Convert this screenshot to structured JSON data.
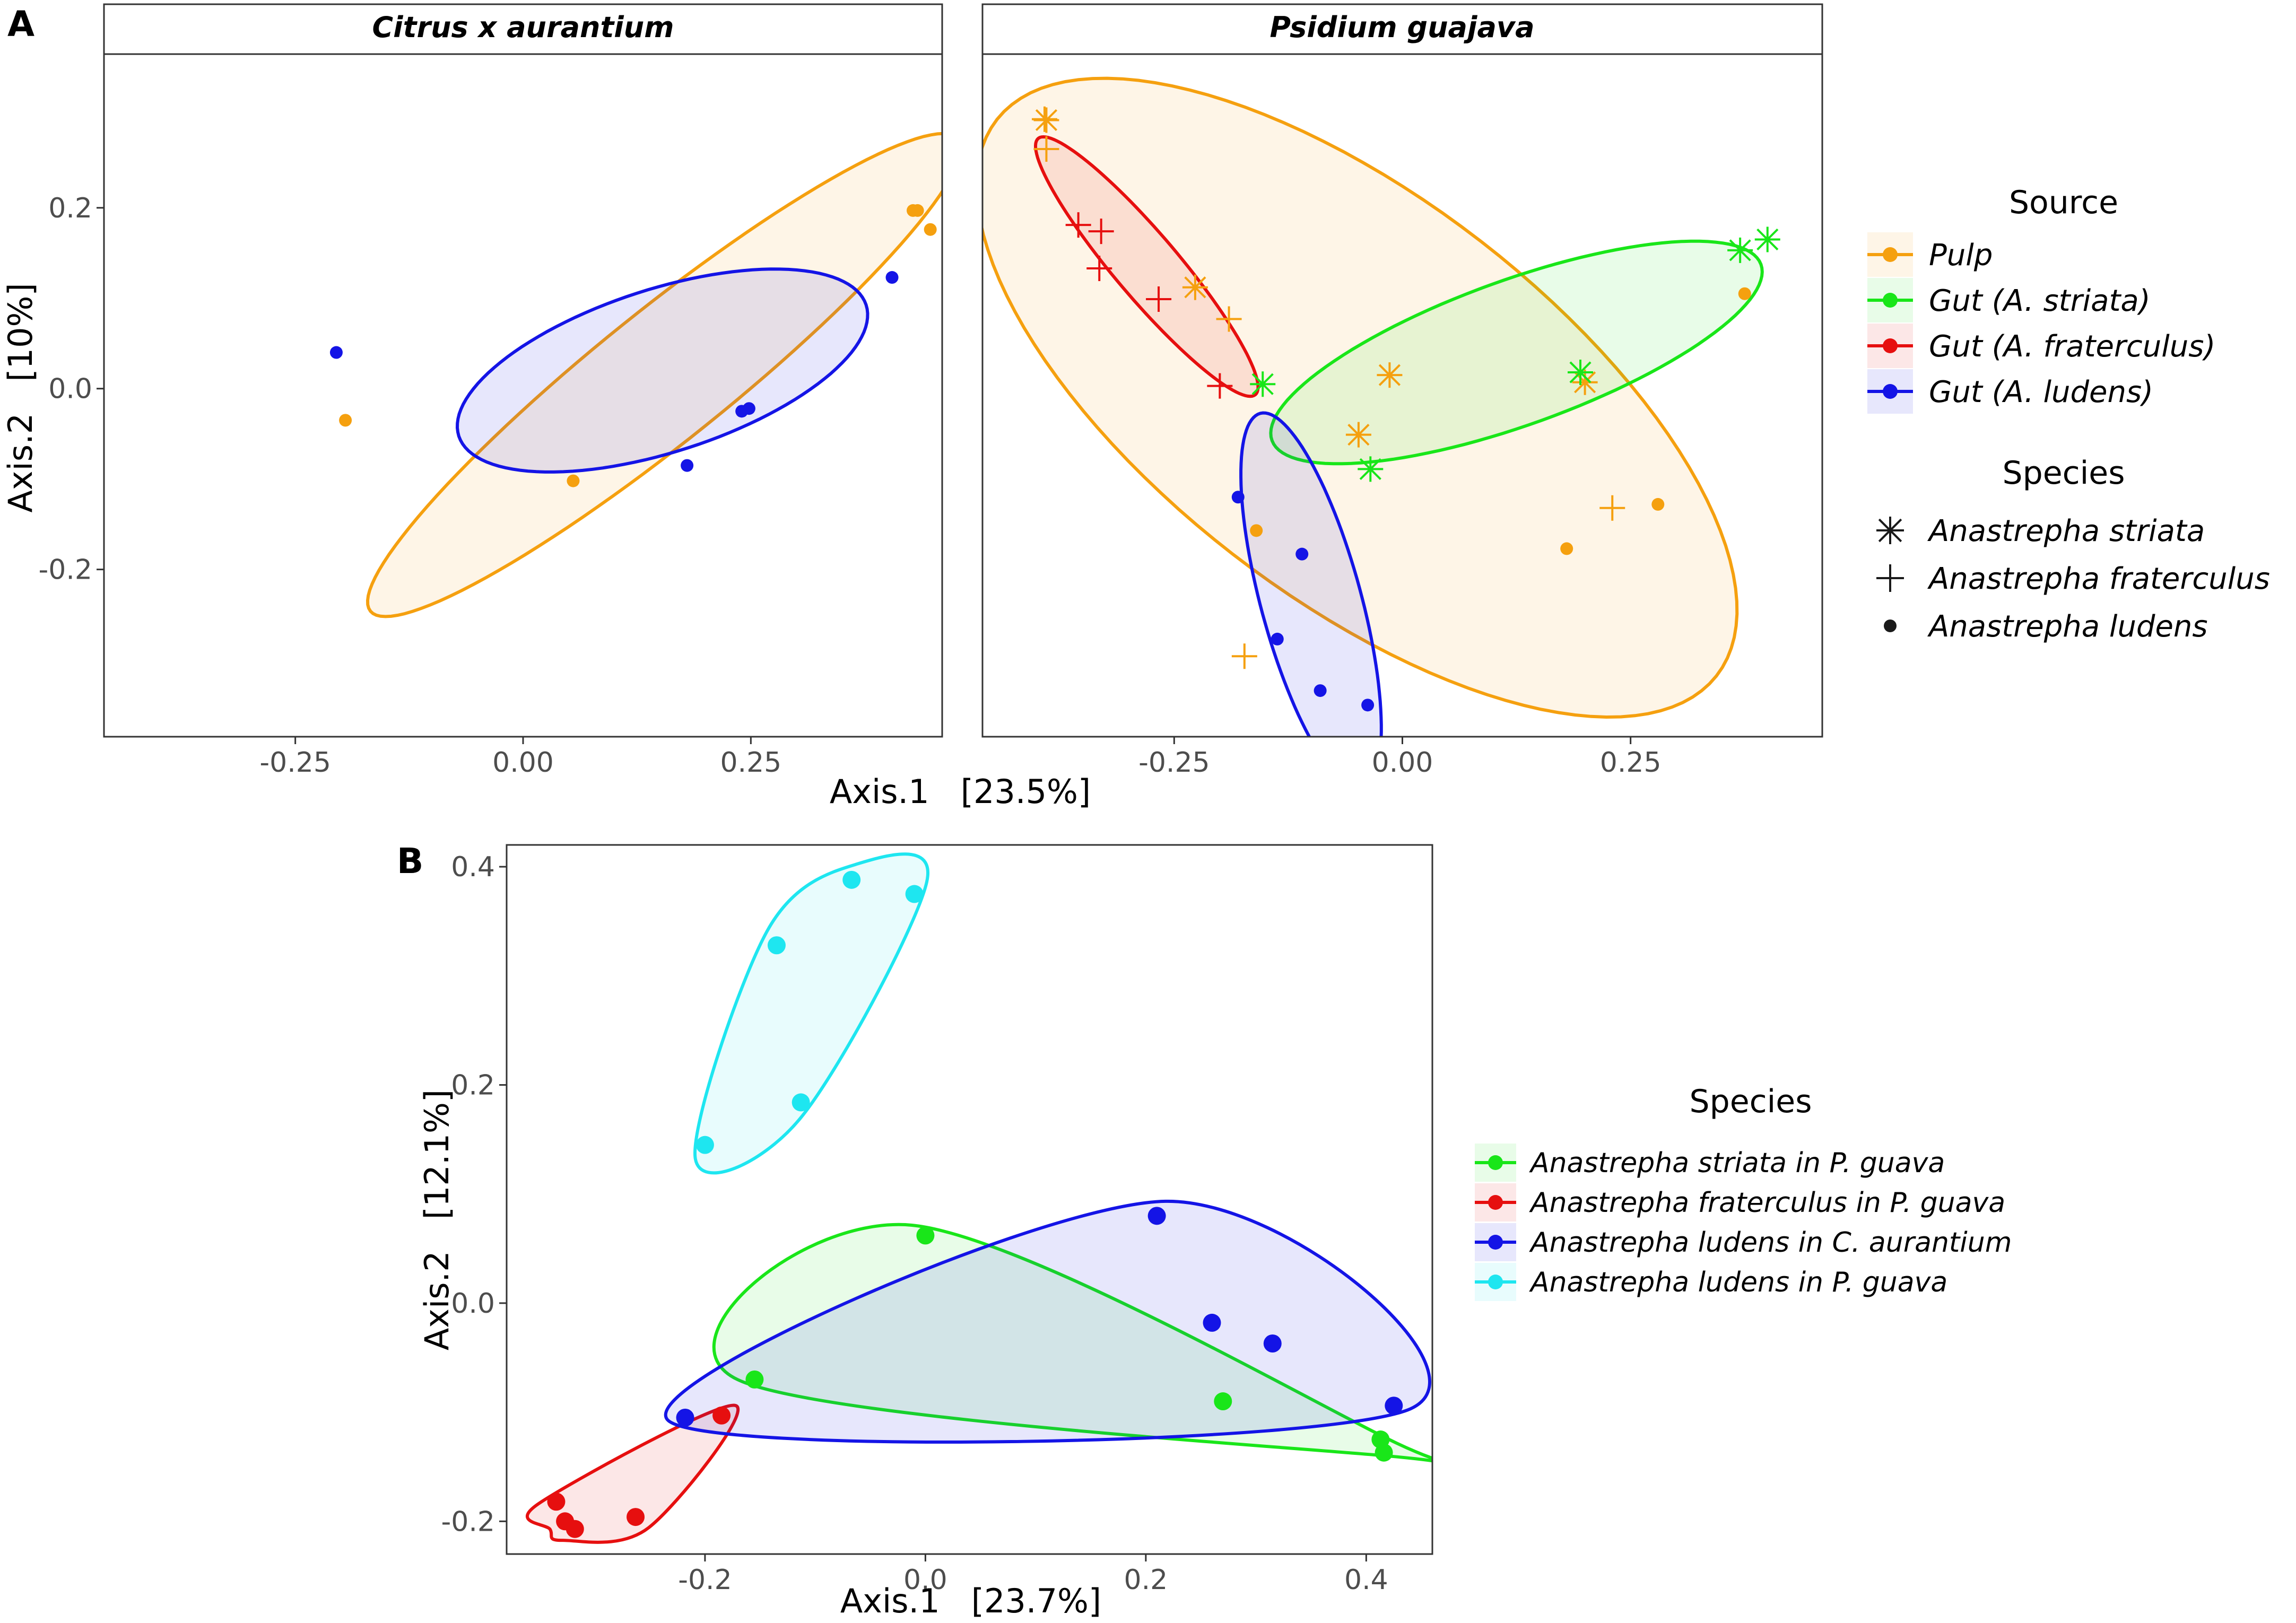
{
  "figure": {
    "panel_a_label": "A",
    "panel_b_label": "B"
  },
  "panel_a": {
    "axis_x_label": "Axis.1   [23.5%]",
    "axis_y_label": "Axis.2   [10%]",
    "facet_1_title": "Citrus x aurantium",
    "facet_2_title": "Psidium guajava",
    "legend_source_title": "Source",
    "legend_species_title": "Species",
    "legend_source": [
      {
        "label": "Pulp",
        "color": "#f5a00f"
      },
      {
        "label": "Gut (A. striata)",
        "color": "#19e619"
      },
      {
        "label": "Gut (A. fraterculus)",
        "color": "#e60f0f"
      },
      {
        "label": "Gut (A. ludens)",
        "color": "#1414e6"
      }
    ],
    "legend_species": [
      {
        "label": "Anastrepha  striata",
        "shape": "asterisk"
      },
      {
        "label": "Anastrepha  fraterculus",
        "shape": "plus"
      },
      {
        "label": "Anastrepha  ludens",
        "shape": "dot"
      }
    ]
  },
  "panel_b": {
    "axis_x_label": "Axis.1   [23.7%]",
    "axis_y_label": "Axis.2   [12.1%]",
    "legend_title": "Species",
    "legend": [
      {
        "label": "Anastrepha striata in P. guava",
        "color": "#19e619"
      },
      {
        "label": "Anastrepha fraterculus in P. guava",
        "color": "#e60f0f"
      },
      {
        "label": "Anastrepha ludens in C. aurantium",
        "color": "#1414e6"
      },
      {
        "label": "Anastrepha ludens in P. guava",
        "color": "#1ee6f0"
      }
    ]
  },
  "chart_data": [
    {
      "type": "scatter",
      "title": "Citrus x aurantium",
      "xlabel": "Axis.1   [23.5%]",
      "ylabel": "Axis.2   [10%]",
      "xlim": [
        -0.46,
        0.46
      ],
      "ylim": [
        -0.385,
        0.37
      ],
      "xticks": [
        -0.25,
        0.0,
        0.25
      ],
      "xtick_labels": [
        "-0.25",
        "0.00",
        "0.25"
      ],
      "yticks": [
        0.2,
        0.0,
        -0.2
      ],
      "ytick_labels": [
        "0.2",
        "0.0",
        "-0.2"
      ],
      "series": [
        {
          "name": "Pulp",
          "color": "#f5a00f",
          "shape": "dot",
          "points": [
            [
              -0.195,
              -0.035
            ],
            [
              0.055,
              -0.102
            ],
            [
              0.428,
              0.197
            ],
            [
              0.433,
              0.197
            ],
            [
              0.447,
              0.176
            ]
          ]
        },
        {
          "name": "Gut (A. ludens)",
          "color": "#1414e6",
          "shape": "dot",
          "points": [
            [
              -0.205,
              0.04
            ],
            [
              0.18,
              -0.085
            ],
            [
              0.24,
              -0.025
            ],
            [
              0.248,
              -0.022
            ],
            [
              0.405,
              0.123
            ]
          ]
        }
      ],
      "ellipses": [
        {
          "name": "Pulp",
          "color": "#f5a00f",
          "center": [
            0.155,
            0.015
          ],
          "semi_axes": [
            0.415,
            0.072
          ],
          "angle_deg": 39
        },
        {
          "name": "Gut (A. ludens)",
          "color": "#1414e6",
          "center": [
            0.153,
            0.02
          ],
          "semi_axes": [
            0.235,
            0.09
          ],
          "angle_deg": 18
        }
      ]
    },
    {
      "type": "scatter",
      "title": "Psidium guajava",
      "xlabel": "Axis.1   [23.5%]",
      "ylabel": "Axis.2   [10%]",
      "xlim": [
        -0.46,
        0.46
      ],
      "ylim": [
        -0.385,
        0.37
      ],
      "xticks": [
        -0.25,
        0.0,
        0.25
      ],
      "xtick_labels": [
        "-0.25",
        "0.00",
        "0.25"
      ],
      "series": [
        {
          "name": "Pulp",
          "color": "#f5a00f",
          "shape": "asterisk",
          "points": [
            [
              -0.39,
              0.297
            ],
            [
              -0.227,
              0.112
            ],
            [
              -0.048,
              -0.051
            ],
            [
              -0.014,
              0.015
            ],
            [
              0.2,
              0.007
            ]
          ]
        },
        {
          "name": "Pulp",
          "color": "#f5a00f",
          "shape": "plus",
          "points": [
            [
              -0.392,
              0.298
            ],
            [
              -0.39,
              0.265
            ],
            [
              -0.19,
              0.077
            ],
            [
              -0.173,
              -0.296
            ],
            [
              0.23,
              -0.132
            ]
          ]
        },
        {
          "name": "Pulp",
          "color": "#f5a00f",
          "shape": "dot",
          "points": [
            [
              -0.16,
              -0.157
            ],
            [
              0.18,
              -0.177
            ],
            [
              0.28,
              -0.128
            ],
            [
              0.375,
              0.105
            ]
          ]
        },
        {
          "name": "Gut (A. striata)",
          "color": "#19e619",
          "shape": "asterisk",
          "points": [
            [
              -0.153,
              0.005
            ],
            [
              -0.035,
              -0.089
            ],
            [
              0.195,
              0.018
            ],
            [
              0.37,
              0.153
            ],
            [
              0.4,
              0.165
            ]
          ]
        },
        {
          "name": "Gut (A. fraterculus)",
          "color": "#e60f0f",
          "shape": "plus",
          "points": [
            [
              -0.355,
              0.181
            ],
            [
              -0.33,
              0.174
            ],
            [
              -0.332,
              0.133
            ],
            [
              -0.267,
              0.099
            ],
            [
              -0.2,
              0.003
            ]
          ]
        },
        {
          "name": "Gut (A. ludens)",
          "color": "#1414e6",
          "shape": "dot",
          "points": [
            [
              -0.18,
              -0.12
            ],
            [
              -0.11,
              -0.183
            ],
            [
              -0.137,
              -0.277
            ],
            [
              -0.09,
              -0.334
            ],
            [
              -0.038,
              -0.35
            ]
          ]
        }
      ],
      "ellipses": [
        {
          "name": "Pulp",
          "color": "#f5a00f",
          "center": [
            -0.05,
            -0.01
          ],
          "semi_axes": [
            0.5,
            0.22
          ],
          "angle_deg": -38
        },
        {
          "name": "Gut (A. striata)",
          "color": "#19e619",
          "center": [
            0.125,
            0.04
          ],
          "semi_axes": [
            0.285,
            0.08
          ],
          "angle_deg": 20
        },
        {
          "name": "Gut (A. fraterculus)",
          "color": "#e60f0f",
          "center": [
            -0.28,
            0.135
          ],
          "semi_axes": [
            0.185,
            0.035
          ],
          "angle_deg": -50
        },
        {
          "name": "Gut (A. ludens)",
          "color": "#1414e6",
          "center": [
            -0.1,
            -0.235
          ],
          "semi_axes": [
            0.215,
            0.055
          ],
          "angle_deg": -75
        }
      ]
    },
    {
      "type": "scatter",
      "title": "",
      "xlabel": "Axis.1   [23.7%]",
      "ylabel": "Axis.2   [12.1%]",
      "xlim": [
        -0.38,
        0.46
      ],
      "ylim": [
        -0.23,
        0.42
      ],
      "xticks": [
        -0.2,
        0.0,
        0.2,
        0.4
      ],
      "xtick_labels": [
        "-0.2",
        "0.0",
        "0.2",
        "0.4"
      ],
      "yticks": [
        0.4,
        0.2,
        0.0,
        -0.2
      ],
      "ytick_labels": [
        "0.4",
        "0.2",
        "0.0",
        "-0.2"
      ],
      "series": [
        {
          "name": "Anastrepha striata in P. guava",
          "color": "#19e619",
          "points": [
            [
              -0.155,
              -0.07
            ],
            [
              0.0,
              0.062
            ],
            [
              0.27,
              -0.09
            ],
            [
              0.413,
              -0.125
            ],
            [
              0.416,
              -0.137
            ]
          ]
        },
        {
          "name": "Anastrepha fraterculus in P. guava",
          "color": "#e60f0f",
          "points": [
            [
              -0.335,
              -0.182
            ],
            [
              -0.327,
              -0.2
            ],
            [
              -0.318,
              -0.207
            ],
            [
              -0.263,
              -0.196
            ],
            [
              -0.185,
              -0.103
            ]
          ]
        },
        {
          "name": "Anastrepha ludens in C. aurantium",
          "color": "#1414e6",
          "points": [
            [
              -0.218,
              -0.105
            ],
            [
              0.21,
              0.08
            ],
            [
              0.26,
              -0.018
            ],
            [
              0.315,
              -0.037
            ],
            [
              0.425,
              -0.094
            ]
          ]
        },
        {
          "name": "Anastrepha ludens in P. guava",
          "color": "#1ee6f0",
          "points": [
            [
              -0.2,
              0.145
            ],
            [
              -0.135,
              0.328
            ],
            [
              -0.113,
              0.184
            ],
            [
              -0.067,
              0.388
            ],
            [
              -0.01,
              0.375
            ]
          ]
        }
      ]
    }
  ]
}
